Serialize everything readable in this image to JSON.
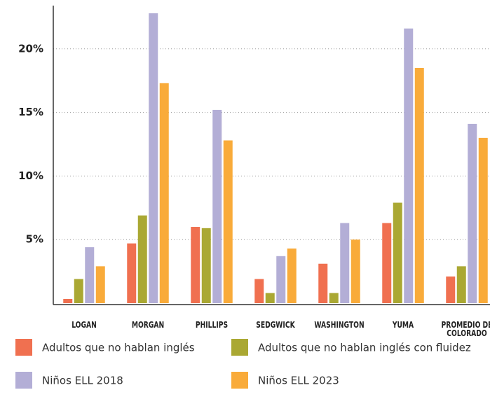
{
  "chart_data": {
    "type": "bar",
    "categories": [
      "LOGAN",
      "MORGAN",
      "PHILLIPS",
      "SEDGWICK",
      "WASHINGTON",
      "YUMA",
      "PROMEDIO DE COLORADO"
    ],
    "series": [
      {
        "name": "Adultos que no hablan inglés",
        "color": "#f07050",
        "values": [
          0.33,
          4.7,
          6.0,
          1.9,
          3.1,
          6.3,
          2.1
        ]
      },
      {
        "name": "Adultos que no hablan inglés con fluidez",
        "color": "#aaa833",
        "values": [
          1.9,
          6.9,
          5.9,
          0.8,
          0.8,
          7.9,
          2.9
        ]
      },
      {
        "name": "Niños ELL 2018",
        "color": "#b3aed6",
        "values": [
          4.4,
          22.8,
          15.2,
          3.7,
          6.3,
          21.6,
          14.1
        ]
      },
      {
        "name": "Niños ELL 2023",
        "color": "#f9ab3a",
        "values": [
          2.9,
          17.3,
          12.8,
          4.3,
          5.0,
          18.5,
          13.0
        ]
      }
    ],
    "ylim": [
      0,
      23.4
    ],
    "yticks": [
      {
        "value": 5,
        "label": "5%"
      },
      {
        "value": 10,
        "label": "10%"
      },
      {
        "value": 15,
        "label": "15%"
      },
      {
        "value": 20,
        "label": "20%"
      }
    ],
    "grid": true
  }
}
